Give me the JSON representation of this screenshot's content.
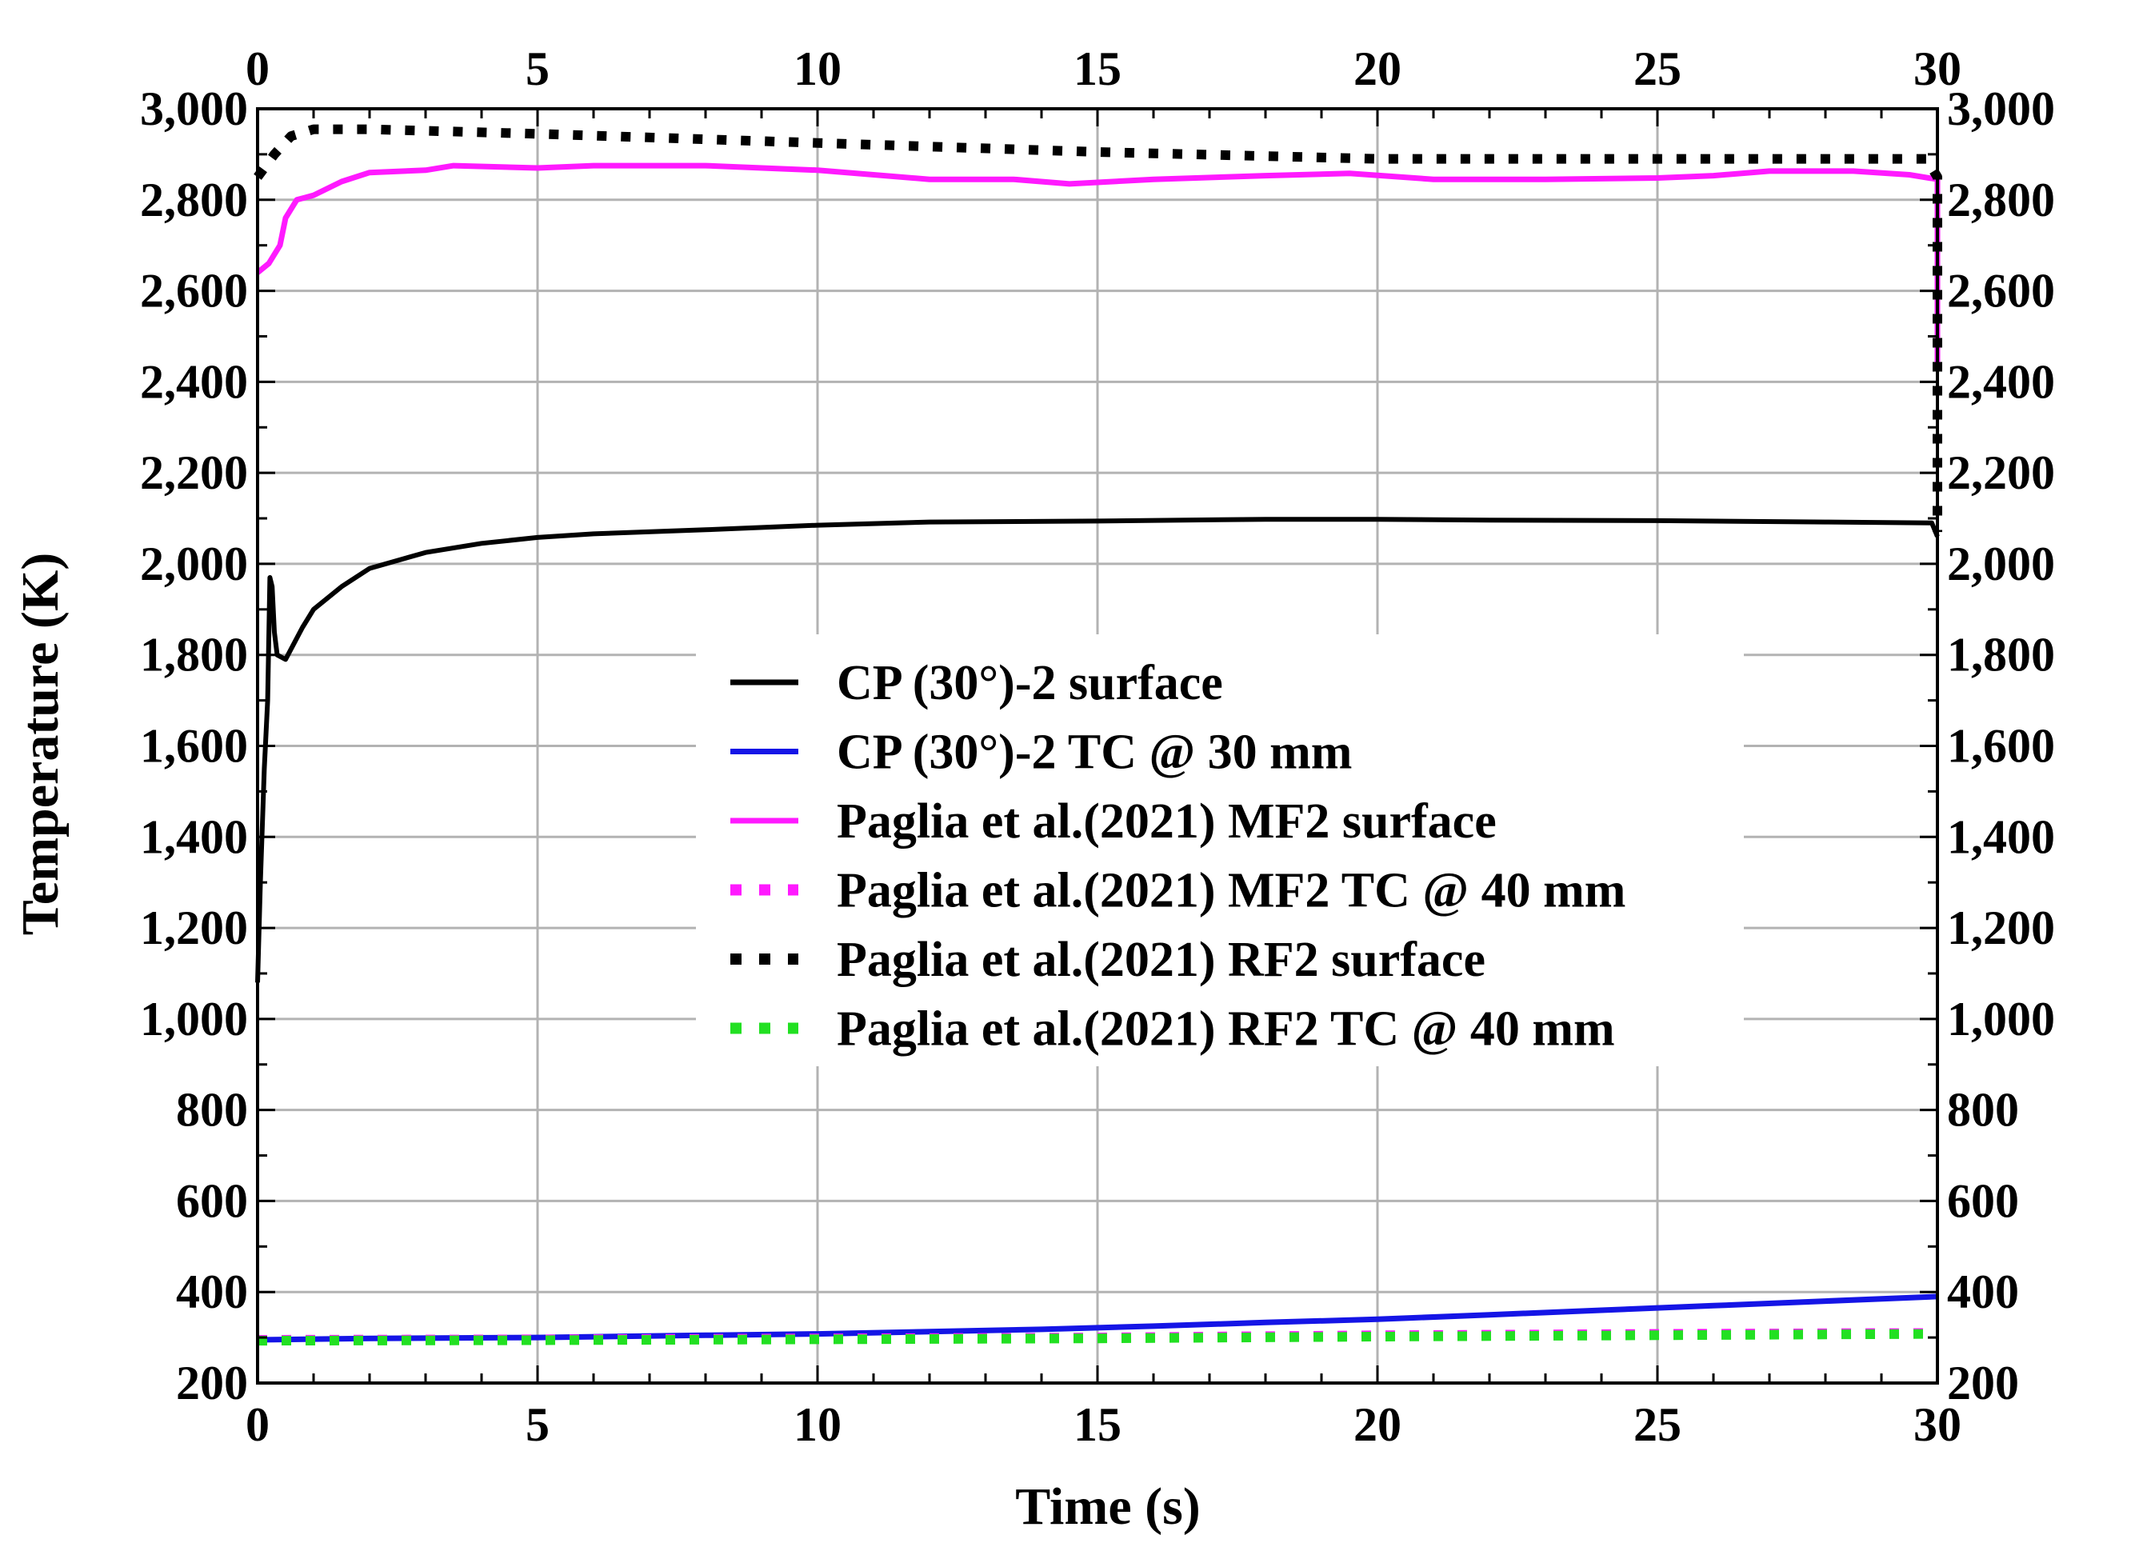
{
  "chart_data": {
    "type": "line",
    "xlabel": "Time (s)",
    "ylabel": "Temperature (K)",
    "xlim": [
      0,
      30
    ],
    "ylim": [
      200,
      3000
    ],
    "x_ticks": [
      0,
      5,
      10,
      15,
      20,
      25,
      30
    ],
    "x_tick_labels": [
      "0",
      "5",
      "10",
      "15",
      "20",
      "25",
      "30"
    ],
    "y_ticks": [
      200,
      400,
      600,
      800,
      1000,
      1200,
      1400,
      1600,
      1800,
      2000,
      2200,
      2400,
      2600,
      2800,
      3000
    ],
    "y_tick_labels": [
      "200",
      "400",
      "600",
      "800",
      "1,000",
      "1,200",
      "1,400",
      "1,600",
      "1,800",
      "2,000",
      "2,200",
      "2,400",
      "2,600",
      "2,800",
      "3,000"
    ],
    "grid": true,
    "legend_position": "center",
    "series": [
      {
        "name": "CP (30°)-2 surface",
        "color": "#000000",
        "style": "solid",
        "points": [
          [
            0,
            1080
          ],
          [
            0.05,
            1300
          ],
          [
            0.12,
            1550
          ],
          [
            0.18,
            1700
          ],
          [
            0.22,
            1970
          ],
          [
            0.26,
            1950
          ],
          [
            0.3,
            1850
          ],
          [
            0.35,
            1800
          ],
          [
            0.5,
            1790
          ],
          [
            0.8,
            1860
          ],
          [
            1,
            1900
          ],
          [
            1.5,
            1950
          ],
          [
            2,
            1990
          ],
          [
            3,
            2025
          ],
          [
            4,
            2045
          ],
          [
            5,
            2058
          ],
          [
            6,
            2066
          ],
          [
            8,
            2075
          ],
          [
            10,
            2085
          ],
          [
            12,
            2092
          ],
          [
            15,
            2094
          ],
          [
            18,
            2098
          ],
          [
            20,
            2098
          ],
          [
            22,
            2096
          ],
          [
            25,
            2095
          ],
          [
            28,
            2092
          ],
          [
            29.9,
            2090
          ],
          [
            30,
            2060
          ]
        ]
      },
      {
        "name": "CP (30°)-2 TC @ 30 mm",
        "color": "#1515e6",
        "style": "solid",
        "points": [
          [
            0,
            295
          ],
          [
            2,
            298
          ],
          [
            5,
            300
          ],
          [
            8,
            305
          ],
          [
            10,
            308
          ],
          [
            12,
            313
          ],
          [
            14,
            318
          ],
          [
            16,
            325
          ],
          [
            18,
            333
          ],
          [
            20,
            340
          ],
          [
            22,
            350
          ],
          [
            24,
            360
          ],
          [
            26,
            370
          ],
          [
            28,
            380
          ],
          [
            30,
            390
          ]
        ]
      },
      {
        "name": "Paglia et al.(2021) MF2 surface",
        "color": "#ff1aff",
        "style": "solid",
        "points": [
          [
            0,
            2640
          ],
          [
            0.2,
            2660
          ],
          [
            0.4,
            2700
          ],
          [
            0.5,
            2760
          ],
          [
            0.7,
            2800
          ],
          [
            1,
            2810
          ],
          [
            1.5,
            2840
          ],
          [
            2,
            2860
          ],
          [
            3,
            2865
          ],
          [
            3.5,
            2875
          ],
          [
            5,
            2870
          ],
          [
            6,
            2875
          ],
          [
            8,
            2875
          ],
          [
            10,
            2865
          ],
          [
            12,
            2845
          ],
          [
            13.5,
            2845
          ],
          [
            14.5,
            2835
          ],
          [
            16,
            2845
          ],
          [
            18,
            2853
          ],
          [
            19.5,
            2858
          ],
          [
            21,
            2845
          ],
          [
            23,
            2845
          ],
          [
            25,
            2848
          ],
          [
            26,
            2853
          ],
          [
            27,
            2863
          ],
          [
            28.5,
            2863
          ],
          [
            29.5,
            2855
          ],
          [
            30,
            2845
          ],
          [
            30,
            2720
          ],
          [
            30,
            2440
          ]
        ]
      },
      {
        "name": "Paglia et al.(2021) MF2 TC @ 40 mm",
        "color": "#ff1aff",
        "style": "dotted",
        "points": [
          [
            0,
            295
          ],
          [
            5,
            296
          ],
          [
            10,
            298
          ],
          [
            15,
            300
          ],
          [
            20,
            305
          ],
          [
            25,
            308
          ],
          [
            30,
            310
          ]
        ]
      },
      {
        "name": "Paglia et al.(2021)  RF2 surface",
        "color": "#000000",
        "style": "dotted",
        "points": [
          [
            0,
            2850
          ],
          [
            0.3,
            2900
          ],
          [
            0.6,
            2940
          ],
          [
            1,
            2955
          ],
          [
            2,
            2955
          ],
          [
            5,
            2945
          ],
          [
            10,
            2925
          ],
          [
            15,
            2905
          ],
          [
            20,
            2890
          ],
          [
            25,
            2890
          ],
          [
            29.8,
            2890
          ],
          [
            30,
            2850
          ],
          [
            30,
            2350
          ],
          [
            30,
            2070
          ]
        ]
      },
      {
        "name": "Paglia et al.(2021) RF2 TC @ 40 mm",
        "color": "#22e022",
        "style": "dotted",
        "points": [
          [
            0,
            293
          ],
          [
            5,
            294
          ],
          [
            10,
            296
          ],
          [
            15,
            298
          ],
          [
            20,
            302
          ],
          [
            25,
            305
          ],
          [
            30,
            308
          ]
        ]
      }
    ]
  }
}
